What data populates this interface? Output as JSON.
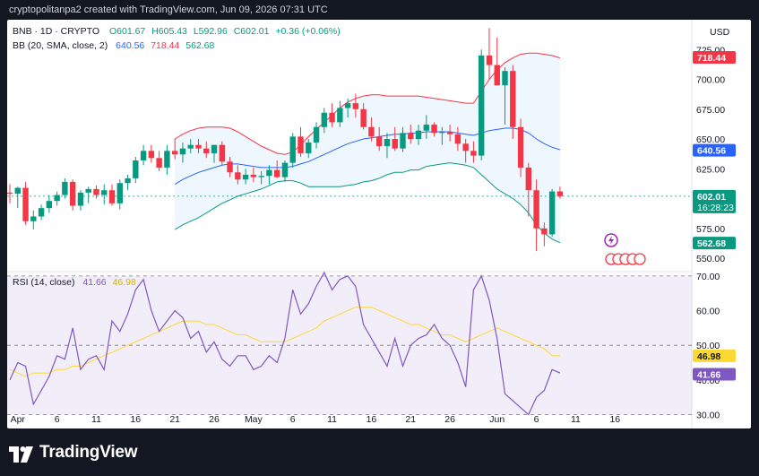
{
  "header": {
    "text": "cryptopolitanpa2 created with TradingView.com, Jun 09, 2026 07:31 UTC"
  },
  "legend": {
    "symbol": "BNB · 1D · CRYPTO",
    "open": "O601.67",
    "high": "H605.43",
    "low": "L592.96",
    "close": "C602.01",
    "change": "+0.36 (+0.06%)",
    "bb_label": "BB (20, SMA, close, 2)",
    "bb_mid": "640.56",
    "bb_upper": "718.44",
    "bb_lower": "562.68",
    "rsi_label": "RSI (14, close)",
    "rsi_value": "41.66",
    "rsi_ma": "46.98"
  },
  "currency": "USD",
  "footer": {
    "brand": "TradingView"
  },
  "colors": {
    "up": "#089981",
    "down": "#f23645",
    "bb_mid": "#2962ff",
    "bb_upper": "#f23645",
    "bb_lower": "#089981",
    "rsi": "#7e57c2",
    "rsi_ma": "#fdd835"
  },
  "chart_data": [
    {
      "type": "candlestick",
      "title": "BNB · 1D · CRYPTO",
      "x": [
        "2026-03-31",
        "2026-04-01",
        "2026-04-02",
        "2026-04-03",
        "2026-04-04",
        "2026-04-05",
        "2026-04-06",
        "2026-04-07",
        "2026-04-08",
        "2026-04-09",
        "2026-04-10",
        "2026-04-11",
        "2026-04-12",
        "2026-04-13",
        "2026-04-14",
        "2026-04-15",
        "2026-04-16",
        "2026-04-17",
        "2026-04-18",
        "2026-04-19",
        "2026-04-20",
        "2026-04-21",
        "2026-04-22",
        "2026-04-23",
        "2026-04-24",
        "2026-04-25",
        "2026-04-26",
        "2026-04-27",
        "2026-04-28",
        "2026-04-29",
        "2026-04-30",
        "2026-05-01",
        "2026-05-02",
        "2026-05-03",
        "2026-05-04",
        "2026-05-05",
        "2026-05-06",
        "2026-05-07",
        "2026-05-08",
        "2026-05-09",
        "2026-05-10",
        "2026-05-11",
        "2026-05-12",
        "2026-05-13",
        "2026-05-14",
        "2026-05-15",
        "2026-05-16",
        "2026-05-17",
        "2026-05-18",
        "2026-05-19",
        "2026-05-20",
        "2026-05-21",
        "2026-05-22",
        "2026-05-23",
        "2026-05-24",
        "2026-05-25",
        "2026-05-26",
        "2026-05-27",
        "2026-05-28",
        "2026-05-29",
        "2026-05-30",
        "2026-05-31",
        "2026-06-01",
        "2026-06-02",
        "2026-06-03",
        "2026-06-04",
        "2026-06-05",
        "2026-06-06",
        "2026-06-07",
        "2026-06-08",
        "2026-06-09"
      ],
      "ohlc": [
        [
          605,
          612,
          596,
          604
        ],
        [
          604,
          610,
          592,
          609
        ],
        [
          609,
          614,
          578,
          581
        ],
        [
          581,
          590,
          574,
          585
        ],
        [
          585,
          595,
          582,
          592
        ],
        [
          592,
          603,
          588,
          598
        ],
        [
          598,
          606,
          594,
          603
        ],
        [
          603,
          617,
          600,
          614
        ],
        [
          614,
          616,
          590,
          594
        ],
        [
          594,
          607,
          590,
          605
        ],
        [
          605,
          610,
          596,
          608
        ],
        [
          608,
          611,
          600,
          603
        ],
        [
          603,
          612,
          595,
          607
        ],
        [
          607,
          612,
          594,
          596
        ],
        [
          596,
          616,
          591,
          613
        ],
        [
          613,
          620,
          607,
          617
        ],
        [
          617,
          635,
          613,
          632
        ],
        [
          632,
          645,
          628,
          640
        ],
        [
          640,
          645,
          630,
          634
        ],
        [
          634,
          640,
          623,
          626
        ],
        [
          626,
          645,
          620,
          640
        ],
        [
          640,
          650,
          633,
          637
        ],
        [
          637,
          647,
          630,
          642
        ],
        [
          642,
          650,
          638,
          645
        ],
        [
          645,
          650,
          638,
          642
        ],
        [
          642,
          648,
          634,
          638
        ],
        [
          638,
          645,
          630,
          645
        ],
        [
          645,
          648,
          628,
          631
        ],
        [
          631,
          635,
          618,
          622
        ],
        [
          622,
          628,
          612,
          616
        ],
        [
          616,
          625,
          612,
          620
        ],
        [
          620,
          626,
          614,
          618
        ],
        [
          618,
          623,
          612,
          619
        ],
        [
          619,
          628,
          612,
          624
        ],
        [
          624,
          632,
          617,
          618
        ],
        [
          618,
          632,
          614,
          630
        ],
        [
          630,
          655,
          626,
          652
        ],
        [
          652,
          660,
          635,
          638
        ],
        [
          638,
          650,
          634,
          647
        ],
        [
          647,
          664,
          642,
          660
        ],
        [
          660,
          676,
          655,
          672
        ],
        [
          672,
          680,
          660,
          664
        ],
        [
          664,
          682,
          660,
          676
        ],
        [
          676,
          684,
          668,
          680
        ],
        [
          680,
          688,
          668,
          675
        ],
        [
          675,
          680,
          658,
          660
        ],
        [
          660,
          668,
          648,
          652
        ],
        [
          652,
          660,
          640,
          644
        ],
        [
          644,
          655,
          634,
          650
        ],
        [
          650,
          660,
          640,
          642
        ],
        [
          642,
          660,
          639,
          655
        ],
        [
          655,
          662,
          646,
          650
        ],
        [
          650,
          662,
          645,
          657
        ],
        [
          657,
          670,
          650,
          662
        ],
        [
          662,
          664,
          652,
          655
        ],
        [
          655,
          660,
          645,
          656
        ],
        [
          656,
          662,
          648,
          654
        ],
        [
          654,
          660,
          640,
          646
        ],
        [
          646,
          650,
          630,
          640
        ],
        [
          640,
          648,
          630,
          636
        ],
        [
          636,
          725,
          632,
          720
        ],
        [
          720,
          743,
          700,
          712
        ],
        [
          712,
          735,
          696,
          695
        ],
        [
          695,
          710,
          662,
          707
        ],
        [
          707,
          712,
          650,
          660
        ],
        [
          660,
          667,
          618,
          626
        ],
        [
          626,
          630,
          585,
          607
        ],
        [
          607,
          616,
          556,
          575
        ],
        [
          575,
          580,
          560,
          570
        ],
        [
          570,
          608,
          568,
          606
        ],
        [
          606,
          610,
          600,
          602
        ]
      ],
      "bb_upper": [
        null,
        null,
        null,
        null,
        null,
        null,
        null,
        null,
        null,
        null,
        null,
        null,
        null,
        null,
        null,
        null,
        null,
        null,
        null,
        null,
        null,
        650,
        654,
        657,
        659,
        660,
        660,
        660,
        659,
        656,
        652,
        648,
        644,
        641,
        638,
        637,
        639,
        645,
        652,
        658,
        664,
        670,
        676,
        681,
        684,
        686,
        687,
        687,
        686,
        686,
        686,
        686,
        686,
        685,
        684,
        683,
        682,
        681,
        680,
        680,
        690,
        700,
        708,
        714,
        718,
        721,
        722,
        722,
        721,
        720,
        718
      ],
      "bb_mid": [
        null,
        null,
        null,
        null,
        null,
        null,
        null,
        null,
        null,
        null,
        null,
        null,
        null,
        null,
        null,
        null,
        null,
        null,
        null,
        null,
        null,
        612,
        616,
        619,
        622,
        624,
        626,
        628,
        629,
        629,
        628,
        627,
        626,
        626,
        626,
        626,
        627,
        629,
        631,
        634,
        637,
        640,
        643,
        646,
        648,
        650,
        651,
        652,
        653,
        654,
        654,
        655,
        655,
        656,
        656,
        656,
        656,
        655,
        654,
        653,
        655,
        657,
        658,
        659,
        659,
        658,
        655,
        650,
        646,
        643,
        641
      ],
      "bb_lower": [
        null,
        null,
        null,
        null,
        null,
        null,
        null,
        null,
        null,
        null,
        null,
        null,
        null,
        null,
        null,
        null,
        null,
        null,
        null,
        null,
        null,
        574,
        578,
        581,
        584,
        588,
        592,
        596,
        599,
        602,
        604,
        606,
        608,
        611,
        614,
        615,
        615,
        613,
        610,
        610,
        610,
        610,
        610,
        611,
        612,
        614,
        615,
        617,
        620,
        622,
        622,
        624,
        624,
        627,
        628,
        629,
        630,
        629,
        628,
        626,
        620,
        614,
        608,
        604,
        600,
        595,
        588,
        578,
        571,
        566,
        563
      ],
      "x_ticks": [
        "Apr",
        "6",
        "11",
        "16",
        "21",
        "26",
        "May",
        "6",
        "11",
        "16",
        "21",
        "26",
        "Jun",
        "6",
        "11",
        "16"
      ],
      "y_ticks": [
        "725.00",
        "700.00",
        "675.00",
        "650.00",
        "625.00",
        "600.00",
        "575.00",
        "550.00"
      ],
      "price_labels": {
        "bb_upper": "718.44",
        "bb_mid": "640.56",
        "last_price": "602.01",
        "countdown": "16:28:23",
        "bb_lower": "562.68"
      },
      "ylim": [
        541,
        750
      ]
    },
    {
      "type": "line",
      "title": "RSI (14, close)",
      "series": [
        {
          "name": "RSI",
          "values": [
            40,
            45,
            44,
            33,
            37,
            41,
            47,
            46,
            55,
            43,
            46,
            47,
            43,
            57,
            54,
            59,
            66,
            69,
            60,
            54,
            57,
            60,
            58,
            52,
            54,
            48,
            51,
            46,
            44,
            47,
            47,
            43,
            44,
            47,
            45,
            52,
            66,
            59,
            62,
            67,
            71,
            66,
            69,
            70,
            67,
            56,
            52,
            48,
            44,
            52,
            44,
            50,
            52,
            53,
            56,
            52,
            50,
            45,
            38,
            66,
            70,
            63,
            52,
            36,
            34,
            32,
            30,
            35,
            37,
            43,
            42
          ]
        },
        {
          "name": "RSI-based MA",
          "values": [
            43,
            42,
            41,
            42,
            42,
            42,
            43,
            43,
            44,
            44,
            45,
            46,
            47,
            48,
            49,
            50,
            51,
            52,
            53,
            54,
            55,
            56,
            57,
            57,
            57,
            56,
            56,
            55,
            54,
            53,
            53,
            52,
            51,
            51,
            51,
            51,
            52,
            53,
            54,
            55,
            57,
            58,
            59,
            60,
            61,
            61,
            61,
            60,
            59,
            58,
            57,
            56,
            56,
            55,
            54,
            53,
            53,
            52,
            51,
            52,
            53,
            54,
            55,
            54,
            53,
            52,
            51,
            50,
            49,
            47,
            47
          ]
        }
      ],
      "y_ticks": [
        "70.00",
        "60.00",
        "50.00",
        "40.00",
        "30.00"
      ],
      "value_labels": [
        "46.98",
        "41.66"
      ],
      "ylim": [
        26,
        71
      ]
    }
  ]
}
